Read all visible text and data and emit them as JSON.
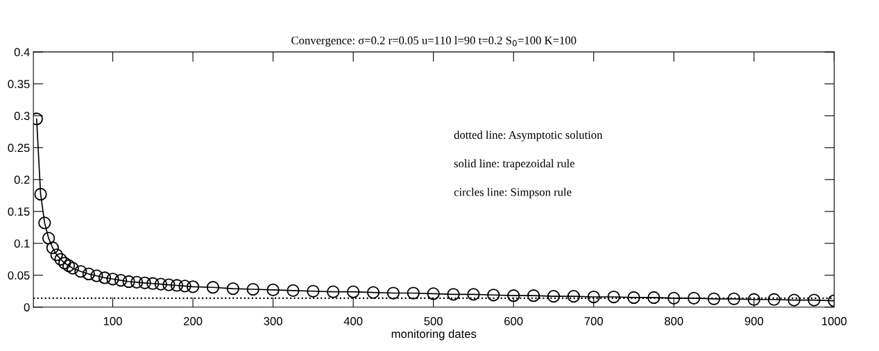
{
  "chart_data": {
    "type": "line",
    "title": "Convergence: σ=0.2 r=0.05 u=110 l=90 t=0.2 S$_{0}$=100 K=100",
    "xlabel": "monitoring dates",
    "x": [
      5,
      10,
      15,
      20,
      25,
      30,
      35,
      40,
      45,
      50,
      60,
      70,
      80,
      90,
      100,
      110,
      120,
      130,
      140,
      150,
      160,
      170,
      180,
      190,
      200,
      225,
      250,
      275,
      300,
      325,
      350,
      375,
      400,
      425,
      450,
      475,
      500,
      525,
      550,
      575,
      600,
      625,
      650,
      675,
      700,
      725,
      750,
      775,
      800,
      825,
      850,
      875,
      900,
      925,
      950,
      975,
      1000
    ],
    "series": [
      {
        "color": "#000000",
        "marker": "none",
        "line_style": "solid",
        "values": [
          0.295,
          0.177,
          0.132,
          0.108,
          0.093,
          0.082,
          0.075,
          0.069,
          0.065,
          0.061,
          0.056,
          0.052,
          0.049,
          0.046,
          0.044,
          0.042,
          0.04,
          0.039,
          0.038,
          0.037,
          0.036,
          0.035,
          0.034,
          0.033,
          0.032,
          0.031,
          0.029,
          0.028,
          0.027,
          0.026,
          0.025,
          0.024,
          0.024,
          0.023,
          0.022,
          0.022,
          0.021,
          0.02,
          0.02,
          0.019,
          0.018,
          0.018,
          0.017,
          0.017,
          0.016,
          0.016,
          0.015,
          0.015,
          0.014,
          0.014,
          0.013,
          0.013,
          0.012,
          0.012,
          0.011,
          0.011,
          0.01
        ]
      },
      {
        "type": "scatter",
        "color": "#000000",
        "marker": "circle",
        "values": [
          0.295,
          0.177,
          0.132,
          0.108,
          0.093,
          0.082,
          0.075,
          0.069,
          0.065,
          0.061,
          0.056,
          0.052,
          0.049,
          0.046,
          0.044,
          0.042,
          0.04,
          0.039,
          0.038,
          0.037,
          0.036,
          0.035,
          0.034,
          0.033,
          0.032,
          0.031,
          0.029,
          0.028,
          0.027,
          0.026,
          0.025,
          0.024,
          0.024,
          0.023,
          0.022,
          0.022,
          0.021,
          0.02,
          0.02,
          0.019,
          0.018,
          0.018,
          0.017,
          0.017,
          0.016,
          0.016,
          0.015,
          0.015,
          0.014,
          0.014,
          0.013,
          0.013,
          0.012,
          0.012,
          0.011,
          0.011,
          0.01
        ]
      }
    ],
    "ref_lines": [
      {
        "axis": "y",
        "value": 0.014,
        "color": "#000000",
        "line_style": "dotted"
      }
    ],
    "annotations": [
      "dotted line: Asymptotic solution",
      "solid line: trapezoidal rule",
      "circles line: Simpson rule"
    ],
    "xlim": [
      1,
      1000
    ],
    "xticks": [
      100,
      200,
      300,
      400,
      500,
      600,
      700,
      800,
      900,
      1000
    ],
    "ylim": [
      0,
      0.4
    ],
    "yticks": [
      0,
      0.05,
      0.1,
      0.15,
      0.2,
      0.25,
      0.3,
      0.35,
      0.4
    ],
    "grid": false,
    "legend": false
  }
}
